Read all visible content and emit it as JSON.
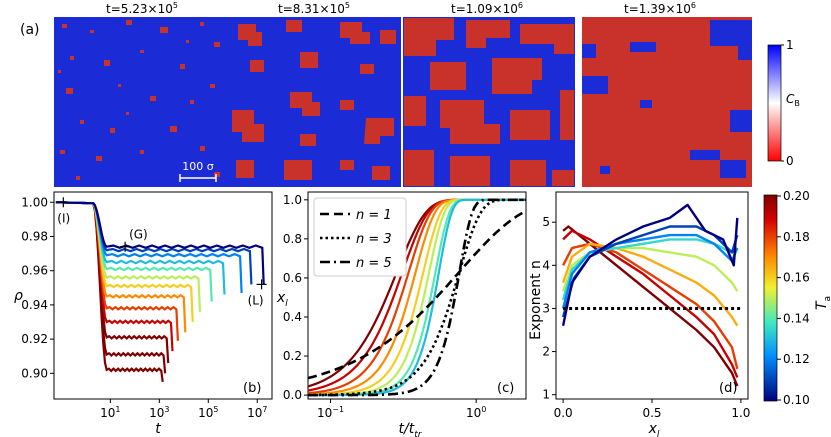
{
  "figure": {
    "panel_labels": [
      "(a)",
      "(b)",
      "(c)",
      "(d)"
    ],
    "snapshots": {
      "titles": [
        "t=5.23×10",
        "t=8.31×10",
        "t=1.09×10",
        "t=1.39×10"
      ],
      "exponents": [
        "5",
        "5",
        "6",
        "6"
      ],
      "scale_bar_label": "100 σ",
      "colorbar": {
        "label": "C",
        "label_sub": "B",
        "ticks": [
          "1",
          "0"
        ],
        "top_color": "#0000ff",
        "bottom_color": "#ff0000"
      },
      "blue": "#1b2bd6",
      "red": "#c8322a"
    },
    "temp_colorbar": {
      "label": "T",
      "label_sub": "a",
      "ticks": [
        "0.20",
        "0.18",
        "0.16",
        "0.14",
        "0.12",
        "0.10"
      ]
    }
  },
  "chart_data": [
    {
      "type": "line",
      "panel": "(b)",
      "xlabel": "t",
      "ylabel": "ρ",
      "xscale": "log",
      "xlim": [
        0.05,
        40000000
      ],
      "ylim": [
        0.885,
        1.006
      ],
      "x_ticks": [
        {
          "base": "10",
          "exp": "1",
          "value": 10
        },
        {
          "base": "10",
          "exp": "3",
          "value": 1000
        },
        {
          "base": "10",
          "exp": "5",
          "value": 100000
        },
        {
          "base": "10",
          "exp": "7",
          "value": 10000000
        }
      ],
      "y_ticks": [
        "1.00",
        "0.98",
        "0.96",
        "0.94",
        "0.92",
        "0.90"
      ],
      "annotations": [
        {
          "text": "(I)",
          "x": 0.12,
          "y": 1.0
        },
        {
          "text": "(G)",
          "x": 40,
          "y": 0.974
        },
        {
          "text": "(L)",
          "x": 15000000,
          "y": 0.952
        }
      ],
      "series": [
        {
          "Ta": 0.1,
          "t_drop": 2,
          "plateau": 0.974,
          "t_end": 16000000,
          "end_value": 0.952
        },
        {
          "Ta": 0.11,
          "t_drop": 2,
          "plateau": 0.972,
          "t_end": 5000000,
          "end_value": 0.952
        },
        {
          "Ta": 0.12,
          "t_drop": 2,
          "plateau": 0.969,
          "t_end": 2000000,
          "end_value": 0.947
        },
        {
          "Ta": 0.13,
          "t_drop": 2,
          "plateau": 0.965,
          "t_end": 400000,
          "end_value": 0.946
        },
        {
          "Ta": 0.14,
          "t_drop": 2,
          "plateau": 0.961,
          "t_end": 120000,
          "end_value": 0.942
        },
        {
          "Ta": 0.15,
          "t_drop": 2,
          "plateau": 0.956,
          "t_end": 40000,
          "end_value": 0.936
        },
        {
          "Ta": 0.16,
          "t_drop": 2,
          "plateau": 0.951,
          "t_end": 20000,
          "end_value": 0.93
        },
        {
          "Ta": 0.17,
          "t_drop": 2,
          "plateau": 0.945,
          "t_end": 10000,
          "end_value": 0.924
        },
        {
          "Ta": 0.18,
          "t_drop": 2,
          "plateau": 0.938,
          "t_end": 5000,
          "end_value": 0.919
        },
        {
          "Ta": 0.19,
          "t_drop": 2,
          "plateau": 0.93,
          "t_end": 3000,
          "end_value": 0.913
        },
        {
          "Ta": 0.2,
          "t_drop": 2,
          "plateau": 0.921,
          "t_end": 2000,
          "end_value": 0.906
        },
        {
          "Ta": 0.21,
          "t_drop": 2,
          "plateau": 0.911,
          "t_end": 1500,
          "end_value": 0.9
        },
        {
          "Ta": 0.22,
          "t_drop": 2,
          "plateau": 0.902,
          "t_end": 1200,
          "end_value": 0.895
        }
      ]
    },
    {
      "type": "line",
      "panel": "(c)",
      "xlabel": "t/t",
      "xlabel_sub": "tr",
      "ylabel": "x",
      "ylabel_sub": "l",
      "xscale": "log",
      "xlim": [
        0.07,
        2.2
      ],
      "ylim": [
        -0.02,
        1.04
      ],
      "x_ticks": [
        {
          "base": "10",
          "exp": "−1",
          "value": 0.1
        },
        {
          "base": "10",
          "exp": "0",
          "value": 1
        }
      ],
      "y_ticks": [
        "1.0",
        "0.8",
        "0.6",
        "0.4",
        "0.2",
        "0.0"
      ],
      "legend": [
        {
          "text": "n = 1",
          "n": 1,
          "dash": "dashed"
        },
        {
          "text": "n = 3",
          "n": 3,
          "dash": "dotted"
        },
        {
          "text": "n = 5",
          "n": 5,
          "dash": "dashdot"
        }
      ],
      "avrami_k": 1.3,
      "colored_series": [
        {
          "Ta": 0.2,
          "n": 2.2,
          "k": 3.5
        },
        {
          "Ta": 0.19,
          "n": 2.5,
          "k": 3.2
        },
        {
          "Ta": 0.18,
          "n": 2.9,
          "k": 2.9
        },
        {
          "Ta": 0.17,
          "n": 3.3,
          "k": 2.6
        },
        {
          "Ta": 0.16,
          "n": 3.7,
          "k": 2.3
        },
        {
          "Ta": 0.15,
          "n": 4.2,
          "k": 2.1
        },
        {
          "Ta": 0.14,
          "n": 4.6,
          "k": 1.9
        },
        {
          "Ta": 0.13,
          "n": 5.0,
          "k": 1.8
        }
      ]
    },
    {
      "type": "line",
      "panel": "(d)",
      "xlabel": "x",
      "xlabel_sub": "l",
      "ylabel": "Exponent n",
      "xlim": [
        -0.04,
        1.04
      ],
      "ylim": [
        0.9,
        5.7
      ],
      "x_ticks": [
        "0.0",
        "0.5",
        "1.0"
      ],
      "y_ticks": [
        "5",
        "4",
        "3",
        "2",
        "1"
      ],
      "reference_line": {
        "y": 3,
        "dash": "dotted"
      },
      "series": [
        {
          "Ta": 0.1,
          "points": [
            [
              0.0,
              2.6
            ],
            [
              0.05,
              3.6
            ],
            [
              0.15,
              4.2
            ],
            [
              0.3,
              4.6
            ],
            [
              0.45,
              4.9
            ],
            [
              0.6,
              5.1
            ],
            [
              0.7,
              5.4
            ],
            [
              0.8,
              4.8
            ],
            [
              0.9,
              4.6
            ],
            [
              0.96,
              4.0
            ],
            [
              0.98,
              5.1
            ]
          ]
        },
        {
          "Ta": 0.11,
          "points": [
            [
              0.0,
              2.8
            ],
            [
              0.06,
              3.7
            ],
            [
              0.15,
              4.2
            ],
            [
              0.3,
              4.5
            ],
            [
              0.45,
              4.7
            ],
            [
              0.6,
              4.9
            ],
            [
              0.75,
              4.9
            ],
            [
              0.85,
              4.7
            ],
            [
              0.95,
              4.3
            ],
            [
              0.98,
              4.7
            ]
          ]
        },
        {
          "Ta": 0.12,
          "points": [
            [
              0.0,
              3.0
            ],
            [
              0.05,
              3.8
            ],
            [
              0.15,
              4.3
            ],
            [
              0.3,
              4.5
            ],
            [
              0.45,
              4.6
            ],
            [
              0.6,
              4.7
            ],
            [
              0.75,
              4.7
            ],
            [
              0.85,
              4.5
            ],
            [
              0.95,
              4.1
            ],
            [
              0.98,
              4.4
            ]
          ]
        },
        {
          "Ta": 0.135,
          "points": [
            [
              0.0,
              3.2
            ],
            [
              0.05,
              3.9
            ],
            [
              0.15,
              4.3
            ],
            [
              0.3,
              4.4
            ],
            [
              0.45,
              4.5
            ],
            [
              0.6,
              4.6
            ],
            [
              0.75,
              4.6
            ],
            [
              0.85,
              4.5
            ],
            [
              0.95,
              4.3
            ],
            [
              0.98,
              4.4
            ]
          ]
        },
        {
          "Ta": 0.15,
          "points": [
            [
              0.0,
              3.4
            ],
            [
              0.05,
              4.0
            ],
            [
              0.15,
              4.3
            ],
            [
              0.3,
              4.4
            ],
            [
              0.45,
              4.4
            ],
            [
              0.6,
              4.3
            ],
            [
              0.75,
              4.2
            ],
            [
              0.85,
              4.0
            ],
            [
              0.95,
              3.6
            ],
            [
              0.98,
              3.4
            ]
          ]
        },
        {
          "Ta": 0.165,
          "points": [
            [
              0.0,
              3.6
            ],
            [
              0.05,
              4.2
            ],
            [
              0.15,
              4.5
            ],
            [
              0.3,
              4.4
            ],
            [
              0.45,
              4.2
            ],
            [
              0.6,
              3.9
            ],
            [
              0.75,
              3.6
            ],
            [
              0.85,
              3.3
            ],
            [
              0.95,
              2.8
            ],
            [
              0.98,
              2.6
            ]
          ]
        },
        {
          "Ta": 0.18,
          "points": [
            [
              0.0,
              4.0
            ],
            [
              0.05,
              4.4
            ],
            [
              0.15,
              4.5
            ],
            [
              0.3,
              4.3
            ],
            [
              0.45,
              3.9
            ],
            [
              0.6,
              3.5
            ],
            [
              0.75,
              3.1
            ],
            [
              0.85,
              2.7
            ],
            [
              0.95,
              2.1
            ],
            [
              0.98,
              1.6
            ]
          ]
        },
        {
          "Ta": 0.19,
          "points": [
            [
              0.0,
              4.6
            ],
            [
              0.05,
              4.8
            ],
            [
              0.15,
              4.6
            ],
            [
              0.3,
              4.2
            ],
            [
              0.45,
              3.8
            ],
            [
              0.6,
              3.3
            ],
            [
              0.75,
              2.8
            ],
            [
              0.85,
              2.4
            ],
            [
              0.95,
              1.7
            ],
            [
              0.98,
              1.4
            ]
          ]
        },
        {
          "Ta": 0.2,
          "points": [
            [
              0.0,
              4.8
            ],
            [
              0.03,
              4.9
            ],
            [
              0.15,
              4.5
            ],
            [
              0.3,
              4.0
            ],
            [
              0.45,
              3.5
            ],
            [
              0.6,
              3.0
            ],
            [
              0.75,
              2.5
            ],
            [
              0.85,
              2.1
            ],
            [
              0.95,
              1.5
            ],
            [
              0.98,
              1.2
            ]
          ]
        }
      ]
    }
  ]
}
